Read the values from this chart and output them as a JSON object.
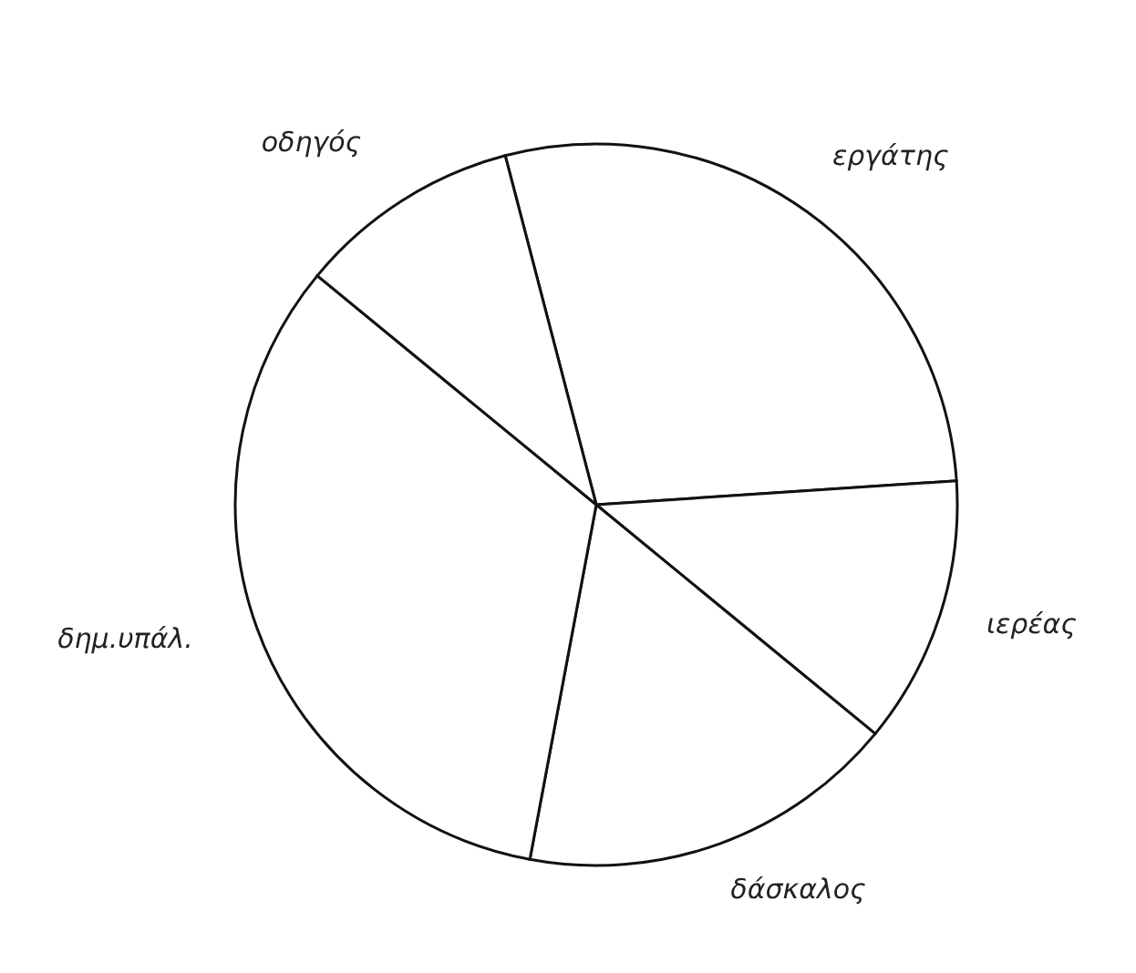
{
  "chart_data": {
    "type": "pie",
    "categories": [
      "εργάτης",
      "ιερέας",
      "δάσκαλος",
      "δημ.υπάλ.",
      "οδηγός"
    ],
    "values": [
      28,
      12,
      17,
      33,
      10
    ],
    "colors": [
      "#ffffff",
      "#ffffff",
      "#ffffff",
      "#ffffff",
      "#ffffff"
    ]
  }
}
